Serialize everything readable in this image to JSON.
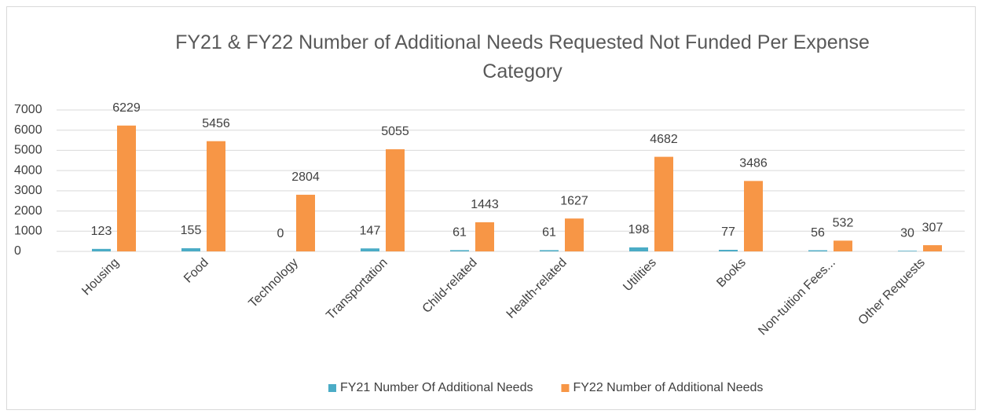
{
  "chart_data": {
    "type": "bar",
    "title": "FY21 & FY22 Number of Additional Needs Requested Not Funded Per Expense Category",
    "categories": [
      "Housing",
      "Food",
      "Technology",
      "Transportation",
      "Child-related",
      "Health-related",
      "Utilities",
      "Books",
      "Non-tuition Fees...",
      "Other Requests"
    ],
    "series": [
      {
        "name": "FY21 Number Of Additional Needs",
        "color": "#4bacc6",
        "values": [
          123,
          155,
          0,
          147,
          61,
          61,
          198,
          77,
          56,
          30
        ]
      },
      {
        "name": "FY22 Number of Additional Needs",
        "color": "#f79646",
        "values": [
          6229,
          5456,
          2804,
          5055,
          1443,
          1627,
          4682,
          3486,
          532,
          307
        ]
      }
    ],
    "ylim": [
      0,
      7000
    ],
    "yticks": [
      0,
      1000,
      2000,
      3000,
      4000,
      5000,
      6000,
      7000
    ],
    "grid": true,
    "legend": "bottom"
  }
}
